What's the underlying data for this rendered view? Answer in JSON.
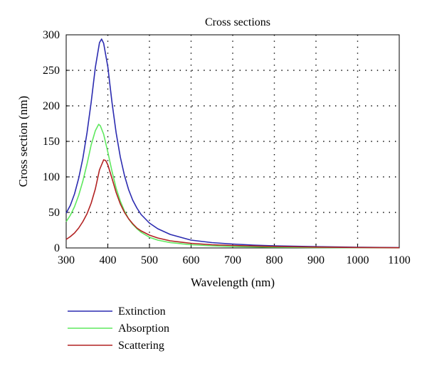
{
  "chart_data": {
    "type": "line",
    "title": "Cross sections",
    "xlabel": "Wavelength (nm)",
    "ylabel": "Cross section (nm)",
    "xlim": [
      300,
      1100
    ],
    "ylim": [
      0,
      300
    ],
    "xticks": [
      "300",
      "400",
      "500",
      "600",
      "700",
      "800",
      "900",
      "1000",
      "1100"
    ],
    "yticks": [
      "0",
      "50",
      "100",
      "150",
      "200",
      "250",
      "300"
    ],
    "grid": true,
    "legend_position": "below",
    "series": [
      {
        "name": "Extinction",
        "color": "#2b2bb0",
        "points": [
          [
            300,
            49
          ],
          [
            310,
            60
          ],
          [
            320,
            76
          ],
          [
            330,
            98
          ],
          [
            340,
            126
          ],
          [
            350,
            162
          ],
          [
            360,
            205
          ],
          [
            370,
            254
          ],
          [
            380,
            289
          ],
          [
            385,
            294
          ],
          [
            390,
            288
          ],
          [
            400,
            255
          ],
          [
            410,
            205
          ],
          [
            420,
            162
          ],
          [
            430,
            128
          ],
          [
            440,
            102
          ],
          [
            450,
            82
          ],
          [
            460,
            67
          ],
          [
            470,
            56
          ],
          [
            480,
            47
          ],
          [
            500,
            35
          ],
          [
            520,
            27
          ],
          [
            550,
            19
          ],
          [
            600,
            11
          ],
          [
            650,
            7.5
          ],
          [
            700,
            5.5
          ],
          [
            750,
            4
          ],
          [
            800,
            3
          ],
          [
            900,
            1.8
          ],
          [
            1000,
            1
          ],
          [
            1100,
            0.5
          ]
        ]
      },
      {
        "name": "Absorption",
        "color": "#5ee85e",
        "points": [
          [
            300,
            37
          ],
          [
            310,
            46
          ],
          [
            320,
            58
          ],
          [
            330,
            74
          ],
          [
            340,
            94
          ],
          [
            350,
            118
          ],
          [
            360,
            145
          ],
          [
            370,
            165
          ],
          [
            378,
            174
          ],
          [
            382,
            172
          ],
          [
            390,
            160
          ],
          [
            400,
            135
          ],
          [
            410,
            108
          ],
          [
            420,
            84
          ],
          [
            430,
            66
          ],
          [
            440,
            52
          ],
          [
            450,
            41
          ],
          [
            460,
            33
          ],
          [
            470,
            27
          ],
          [
            480,
            22
          ],
          [
            500,
            15
          ],
          [
            520,
            11
          ],
          [
            550,
            7.5
          ],
          [
            600,
            4.5
          ],
          [
            650,
            3
          ],
          [
            700,
            2
          ],
          [
            800,
            1
          ],
          [
            900,
            0.6
          ],
          [
            1000,
            0.3
          ],
          [
            1100,
            0.2
          ]
        ]
      },
      {
        "name": "Scattering",
        "color": "#b22222",
        "points": [
          [
            300,
            12
          ],
          [
            310,
            16
          ],
          [
            320,
            21
          ],
          [
            330,
            28
          ],
          [
            340,
            37
          ],
          [
            350,
            48
          ],
          [
            360,
            63
          ],
          [
            370,
            83
          ],
          [
            380,
            110
          ],
          [
            390,
            124
          ],
          [
            395,
            123
          ],
          [
            400,
            117
          ],
          [
            410,
            98
          ],
          [
            420,
            78
          ],
          [
            430,
            62
          ],
          [
            440,
            50
          ],
          [
            450,
            41
          ],
          [
            460,
            34
          ],
          [
            470,
            28
          ],
          [
            480,
            24
          ],
          [
            500,
            18
          ],
          [
            520,
            14
          ],
          [
            550,
            10
          ],
          [
            600,
            6.5
          ],
          [
            650,
            4.5
          ],
          [
            700,
            3.5
          ],
          [
            800,
            2
          ],
          [
            900,
            1.2
          ],
          [
            1000,
            0.6
          ],
          [
            1100,
            0.3
          ]
        ]
      }
    ]
  }
}
